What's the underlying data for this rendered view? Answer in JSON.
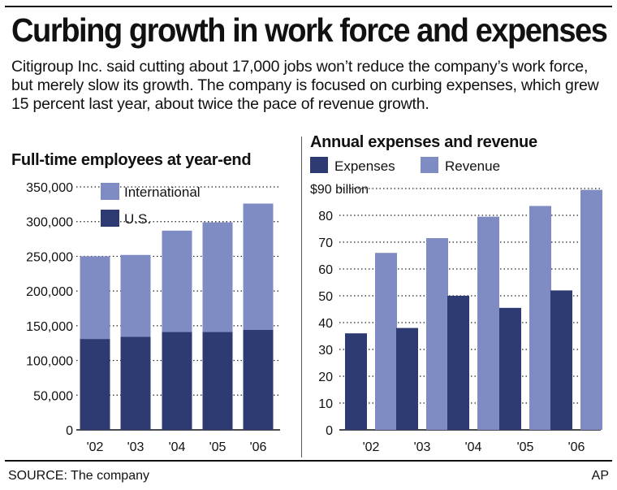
{
  "header": {
    "title": "Curbing growth in work force and expenses",
    "subtitle": "Citigroup Inc. said cutting about 17,000 jobs won’t reduce the company’s work force, but merely slow its growth. The company is focused on curbing expenses, which grew 15 percent last year, about twice the pace of revenue growth."
  },
  "footer": {
    "source": "SOURCE: The company",
    "credit": "AP"
  },
  "colors": {
    "dark": "#2e3b72",
    "light": "#7f8cc3",
    "grid": "#222222"
  },
  "chart_data": [
    {
      "type": "bar",
      "stacked": true,
      "title": "Full-time employees at year-end",
      "categories": [
        "'02",
        "'03",
        "'04",
        "'05",
        "'06"
      ],
      "series": [
        {
          "name": "U.S.",
          "values": [
            131000,
            134000,
            141000,
            141000,
            144000
          ],
          "color": "#2e3b72"
        },
        {
          "name": "International",
          "values": [
            119000,
            118000,
            146000,
            158000,
            182000
          ],
          "color": "#7f8cc3"
        }
      ],
      "ylim": [
        0,
        350000
      ],
      "yticks": [
        0,
        50000,
        100000,
        150000,
        200000,
        250000,
        300000,
        350000
      ],
      "ytick_labels": [
        "0",
        "50,000",
        "100,000",
        "150,000",
        "200,000",
        "250,000",
        "300,000",
        "350,000"
      ],
      "grid": true,
      "legend": "top-left"
    },
    {
      "type": "bar",
      "stacked": false,
      "title": "Annual expenses and revenue",
      "categories": [
        "'02",
        "'03",
        "'04",
        "'05",
        "'06"
      ],
      "series": [
        {
          "name": "Expenses",
          "values": [
            36,
            38,
            50,
            45.5,
            52
          ],
          "color": "#2e3b72"
        },
        {
          "name": "Revenue",
          "values": [
            66,
            71.5,
            79.5,
            83.5,
            89.5
          ],
          "color": "#7f8cc3"
        }
      ],
      "ylim": [
        0,
        90
      ],
      "yticks": [
        0,
        10,
        20,
        30,
        40,
        50,
        60,
        70,
        80,
        90
      ],
      "ytick_labels": [
        "0",
        "10",
        "20",
        "30",
        "40",
        "50",
        "60",
        "70",
        "80",
        "$90 billion"
      ],
      "grid": true,
      "legend": "top"
    }
  ]
}
